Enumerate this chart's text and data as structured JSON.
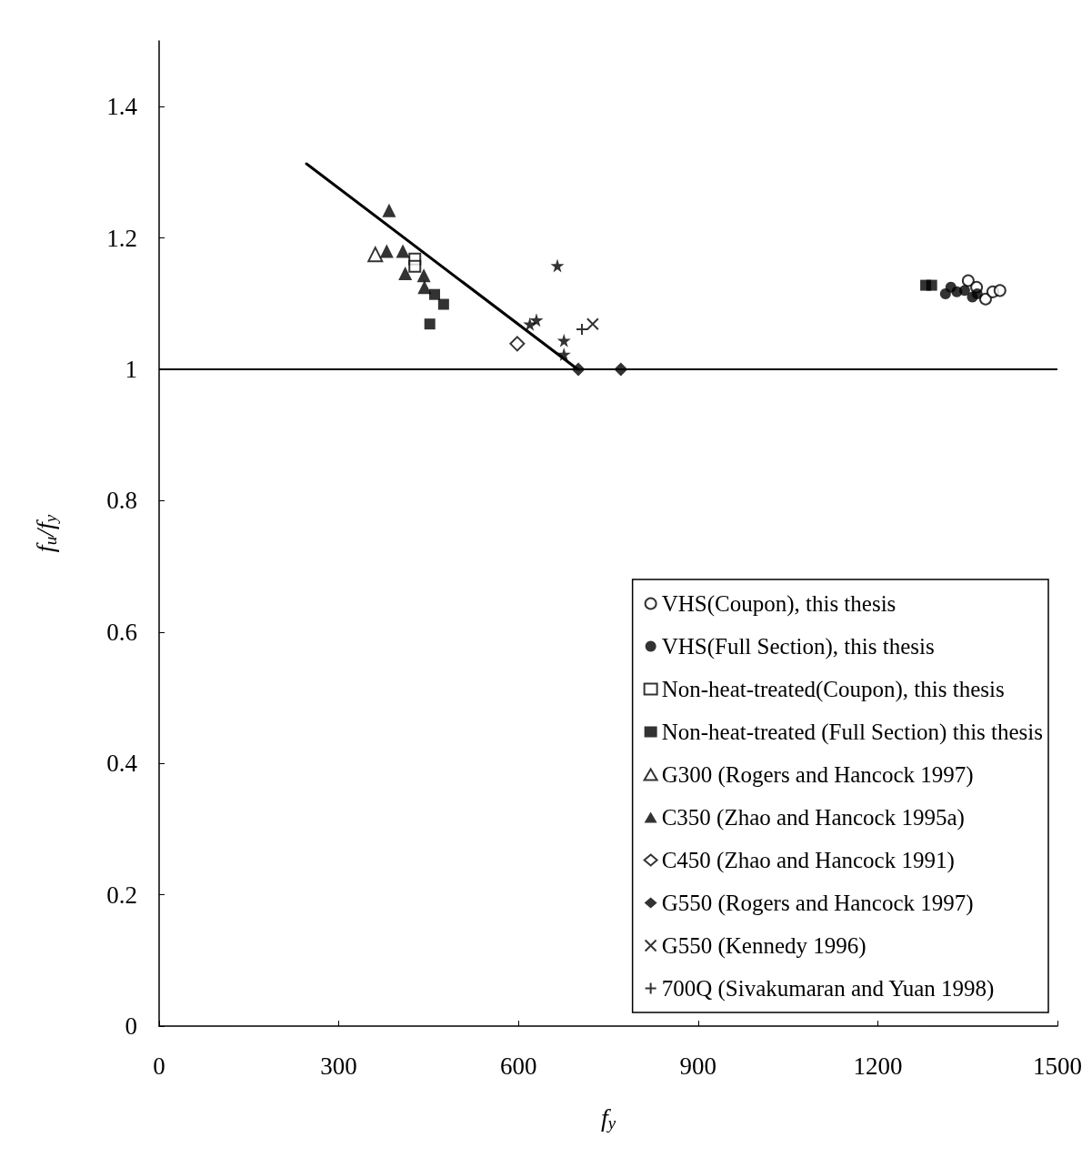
{
  "chart_data": {
    "type": "scatter",
    "xlabel": "f$_{y}$",
    "ylabel": "f$_{u}$/f$_{y}$",
    "xlim": [
      0,
      1500
    ],
    "xticks": [
      0,
      300,
      600,
      900,
      1200,
      1500
    ],
    "ylim": [
      0,
      1.5
    ],
    "yticks": [
      0,
      0.2,
      0.4,
      0.6,
      0.8,
      {
        "value": 1,
        "label": "1"
      },
      1.2,
      1.4
    ],
    "grid": false,
    "legend": "bottom right",
    "ref_lines": [
      {
        "axis": "y",
        "value": 1,
        "label": null,
        "color": "#000000"
      }
    ],
    "series": [
      {
        "name": "VHS(Coupon), this thesis",
        "color": "#000000",
        "marker": "circle",
        "x": [
          1351,
          1365,
          1380,
          1392,
          1404
        ],
        "values": [
          1.135,
          1.125,
          1.107,
          1.118,
          1.12
        ]
      },
      {
        "name": "VHS(Full Section), this thesis",
        "color": "#000000",
        "marker": "circle",
        "x": [
          1313,
          1322,
          1332,
          1345,
          1358,
          1366
        ],
        "values": [
          1.115,
          1.125,
          1.118,
          1.12,
          1.11,
          1.115
        ]
      },
      {
        "name": "Non-heat-treated(Coupon), this thesis",
        "color": "#000000",
        "marker": "square",
        "x": [
          427,
          427
        ],
        "values": [
          1.168,
          1.157
        ]
      },
      {
        "name": "Non-heat-treated (Full Section) this thesis",
        "color": "#000000",
        "marker": "square",
        "x": [
          460,
          475,
          452,
          1280,
          1290
        ],
        "values": [
          1.114,
          1.099,
          1.069,
          1.128,
          1.128
        ]
      },
      {
        "name": "G300 (Rogers and Hancock 1997)",
        "color": "#000000",
        "marker": "triangle",
        "x": [
          361
        ],
        "values": [
          1.175
        ]
      },
      {
        "name": "C350 (Zhao and Hancock 1995a)",
        "color": "#000000",
        "marker": "triangle",
        "x": [
          384,
          380,
          407,
          411,
          442,
          443
        ],
        "values": [
          1.242,
          1.18,
          1.18,
          1.146,
          1.143,
          1.125
        ]
      },
      {
        "name": "C450 (Zhao and Hancock 1991)",
        "color": "#000000",
        "marker": "diamond",
        "x": [
          598
        ],
        "values": [
          1.039
        ]
      },
      {
        "name": "G550 (Rogers and Hancock 1997)",
        "color": "#000000",
        "marker": "diamond",
        "x": [
          700,
          771
        ],
        "values": [
          1.0,
          1.0
        ]
      },
      {
        "name": "G550 (Kennedy 1996)",
        "color": "#000000",
        "marker": "cross",
        "x": [
          724
        ],
        "values": [
          1.069
        ]
      },
      {
        "name": "700Q (Sivakumaran and Yuan 1998)",
        "color": "#000000",
        "marker": "plus",
        "x": [
          706
        ],
        "values": [
          1.061
        ]
      },
      {
        "color": "#000000",
        "marker": "star",
        "x": [
          665,
          619,
          676,
          676,
          630
        ],
        "values": [
          1.158,
          1.069,
          1.044,
          1.023,
          1.075
        ]
      },
      {
        "type": "line",
        "color": "#000000",
        "marker": "none",
        "x": [
          246,
          699
        ],
        "values": [
          1.313,
          1.0
        ]
      }
    ]
  }
}
